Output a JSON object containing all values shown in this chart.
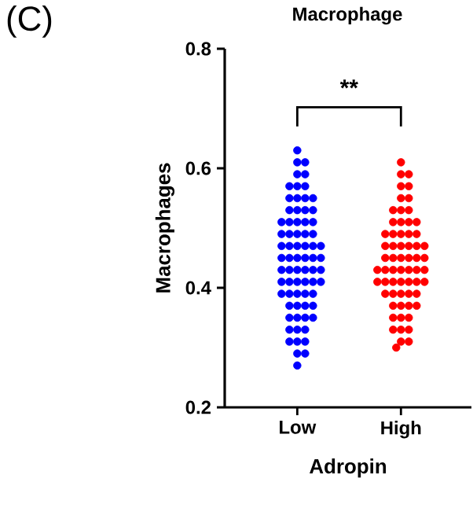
{
  "chart_data": {
    "type": "scatter",
    "title": "Macrophage",
    "xlabel": "Adropin",
    "ylabel": "Macrophages",
    "annotations": [
      "(C)",
      "**"
    ],
    "marker": "circle",
    "categories": [
      "Low",
      "High"
    ],
    "ylim": [
      0.2,
      0.8
    ],
    "yticks": [
      {
        "value": 0.2,
        "label": "0.2"
      },
      {
        "value": 0.4,
        "label": "0.4"
      },
      {
        "value": 0.6,
        "label": "0.6"
      },
      {
        "value": 0.8,
        "label": "0.8"
      }
    ],
    "series": [
      {
        "color": "#0000ff",
        "x": [
          "Low",
          "Low",
          "Low",
          "Low",
          "Low",
          "Low",
          "Low",
          "Low",
          "Low",
          "Low",
          "Low",
          "Low",
          "Low",
          "Low",
          "Low",
          "Low",
          "Low",
          "Low",
          "Low",
          "Low",
          "Low",
          "Low",
          "Low",
          "Low",
          "Low",
          "Low",
          "Low",
          "Low",
          "Low",
          "Low",
          "Low",
          "Low",
          "Low",
          "Low",
          "Low",
          "Low",
          "Low",
          "Low",
          "Low",
          "Low",
          "Low",
          "Low",
          "Low",
          "Low",
          "Low",
          "Low",
          "Low",
          "Low",
          "Low",
          "Low",
          "Low",
          "Low",
          "Low",
          "Low",
          "Low",
          "Low",
          "Low",
          "Low",
          "Low",
          "Low",
          "Low",
          "Low",
          "Low",
          "Low",
          "Low",
          "Low",
          "Low",
          "Low",
          "Low",
          "Low",
          "Low",
          "Low"
        ],
        "values": [
          0.63,
          0.61,
          0.61,
          0.59,
          0.59,
          0.57,
          0.57,
          0.57,
          0.55,
          0.55,
          0.55,
          0.55,
          0.53,
          0.53,
          0.53,
          0.53,
          0.51,
          0.51,
          0.51,
          0.51,
          0.51,
          0.49,
          0.49,
          0.49,
          0.49,
          0.49,
          0.47,
          0.47,
          0.47,
          0.47,
          0.47,
          0.47,
          0.45,
          0.45,
          0.45,
          0.45,
          0.45,
          0.45,
          0.43,
          0.43,
          0.43,
          0.43,
          0.43,
          0.43,
          0.41,
          0.41,
          0.41,
          0.41,
          0.41,
          0.41,
          0.39,
          0.39,
          0.39,
          0.39,
          0.39,
          0.37,
          0.37,
          0.37,
          0.37,
          0.35,
          0.35,
          0.35,
          0.35,
          0.33,
          0.33,
          0.33,
          0.31,
          0.31,
          0.31,
          0.29,
          0.29,
          0.27
        ]
      },
      {
        "color": "#ff0000",
        "x": [
          "High",
          "High",
          "High",
          "High",
          "High",
          "High",
          "High",
          "High",
          "High",
          "High",
          "High",
          "High",
          "High",
          "High",
          "High",
          "High",
          "High",
          "High",
          "High",
          "High",
          "High",
          "High",
          "High",
          "High",
          "High",
          "High",
          "High",
          "High",
          "High",
          "High",
          "High",
          "High",
          "High",
          "High",
          "High",
          "High",
          "High",
          "High",
          "High",
          "High",
          "High",
          "High",
          "High",
          "High",
          "High",
          "High",
          "High",
          "High",
          "High",
          "High",
          "High",
          "High",
          "High",
          "High",
          "High",
          "High",
          "High",
          "High",
          "High",
          "High",
          "High",
          "High",
          "High"
        ],
        "values": [
          0.61,
          0.59,
          0.59,
          0.57,
          0.57,
          0.55,
          0.55,
          0.53,
          0.53,
          0.53,
          0.51,
          0.51,
          0.51,
          0.51,
          0.49,
          0.49,
          0.49,
          0.49,
          0.49,
          0.47,
          0.47,
          0.47,
          0.47,
          0.47,
          0.47,
          0.45,
          0.45,
          0.45,
          0.45,
          0.45,
          0.45,
          0.43,
          0.43,
          0.43,
          0.43,
          0.43,
          0.43,
          0.43,
          0.41,
          0.41,
          0.41,
          0.41,
          0.41,
          0.41,
          0.41,
          0.39,
          0.39,
          0.39,
          0.39,
          0.39,
          0.37,
          0.37,
          0.37,
          0.37,
          0.35,
          0.35,
          0.35,
          0.33,
          0.33,
          0.33,
          0.31,
          0.31,
          0.3
        ]
      }
    ]
  }
}
